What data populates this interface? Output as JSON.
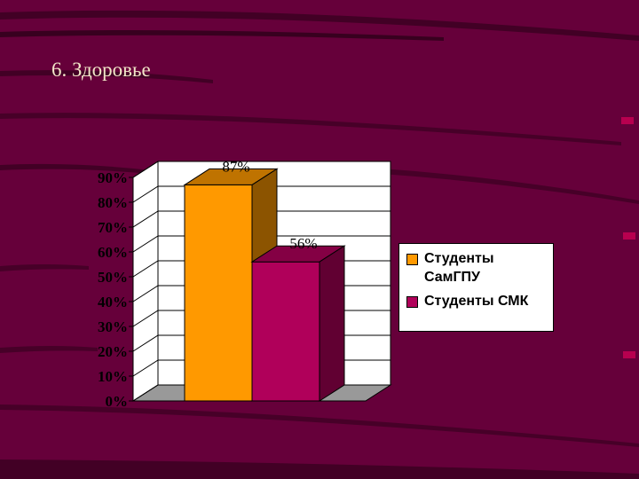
{
  "slide": {
    "title": "6.  Здоровье",
    "background": "#66003a"
  },
  "chart_data": {
    "type": "bar",
    "style": "3d",
    "categories": [
      ""
    ],
    "series": [
      {
        "name": "Студенты СамГПУ",
        "values": [
          87
        ],
        "color": "#ff9900",
        "label": "87%"
      },
      {
        "name": "Студенты СМК",
        "values": [
          56
        ],
        "color": "#b0005a",
        "label": "56%"
      }
    ],
    "y_ticks": [
      "0%",
      "10%",
      "20%",
      "30%",
      "40%",
      "50%",
      "60%",
      "70%",
      "80%",
      "90%"
    ],
    "ylim": [
      0,
      90
    ],
    "grid": true,
    "legend_position": "right",
    "plot_background": "#ffffff"
  },
  "legend": {
    "items": [
      {
        "lines": [
          "Студенты",
          "СамГПУ"
        ],
        "color": "#ff9900"
      },
      {
        "lines": [
          "Студенты СМК"
        ],
        "color": "#b0005a"
      }
    ]
  },
  "decorations": {
    "streak_color": "#000000",
    "accent": "#cc0055"
  }
}
